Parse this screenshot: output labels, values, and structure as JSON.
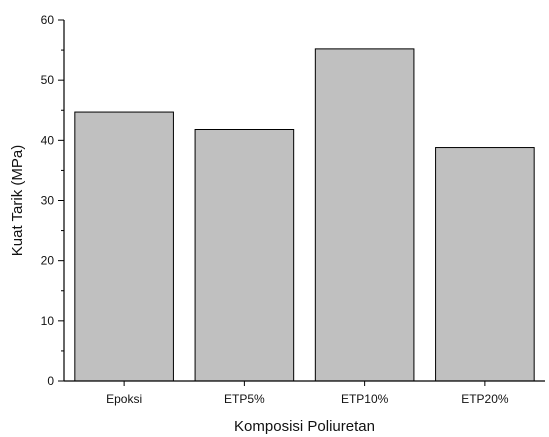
{
  "chart_data": {
    "type": "bar",
    "categories": [
      "Epoksi",
      "ETP5%",
      "ETP10%",
      "ETP20%"
    ],
    "values": [
      44.7,
      41.8,
      55.2,
      38.8
    ],
    "xlabel": "Komposisi Poliuretan",
    "ylabel": "Kuat Tarik (MPa)",
    "ylim": [
      0,
      60
    ],
    "yticks": [
      0,
      10,
      20,
      30,
      40,
      50,
      60
    ],
    "grid": false,
    "legend": "none",
    "colors": {
      "bar_fill": "#c0c0c0",
      "bar_stroke": "#000000"
    }
  }
}
